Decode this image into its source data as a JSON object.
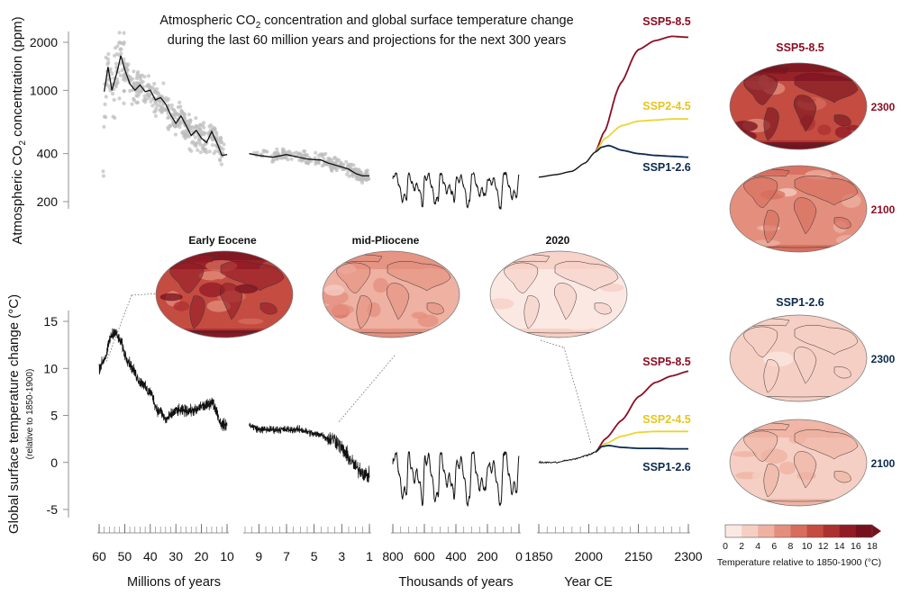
{
  "chart_data": {
    "type": "line",
    "title_line1": "Atmospheric CO",
    "title_line1_sub": "2",
    "title_line1_rest": " concentration and global surface temperature change",
    "title_line2": "during the last 60 million years and projections for the next 300 years",
    "colors": {
      "ssp585": "#8b0e24",
      "ssp245": "#ecd530",
      "ssp126": "#0c2a4e",
      "scatter": "#bcbcbc",
      "line": "#111111"
    },
    "co2_panel": {
      "ylabel_main": "Atmospheric CO",
      "ylabel_sub": "2",
      "ylabel_rest": " concentration (ppm)",
      "yscale": "log",
      "yticks": [
        "2000",
        "1000",
        "400",
        "200"
      ],
      "ylim": [
        170,
        2500
      ],
      "segments": [
        {
          "name": "millions-of-years",
          "xlim": [
            60,
            10
          ],
          "smooth": [
            [
              58,
              980
            ],
            [
              56.5,
              1400
            ],
            [
              55,
              1000
            ],
            [
              53,
              1300
            ],
            [
              51.5,
              1650
            ],
            [
              50,
              1350
            ],
            [
              48,
              1100
            ],
            [
              46,
              1000
            ],
            [
              44,
              1080
            ],
            [
              42,
              980
            ],
            [
              40,
              1000
            ],
            [
              38,
              870
            ],
            [
              36,
              900
            ],
            [
              34,
              820
            ],
            [
              32,
              700
            ],
            [
              30,
              620
            ],
            [
              28,
              690
            ],
            [
              26,
              600
            ],
            [
              24,
              520
            ],
            [
              22,
              560
            ],
            [
              20,
              500
            ],
            [
              18,
              470
            ],
            [
              16,
              550
            ],
            [
              14,
              470
            ],
            [
              12,
              390
            ],
            [
              10,
              395
            ]
          ]
        },
        {
          "name": "pliocene-myr",
          "xlim": [
            10,
            1
          ],
          "smooth": [
            [
              9.7,
              400
            ],
            [
              9,
              390
            ],
            [
              8,
              380
            ],
            [
              7,
              395
            ],
            [
              6.4,
              385
            ],
            [
              5.5,
              370
            ],
            [
              4.5,
              365
            ],
            [
              4,
              350
            ],
            [
              3,
              330
            ],
            [
              2.5,
              320
            ],
            [
              2,
              300
            ],
            [
              1.5,
              290
            ],
            [
              1,
              290
            ]
          ]
        },
        {
          "name": "thousands-of-years",
          "xlim": [
            800,
            0
          ],
          "glacial_min": 185,
          "interglacial_max": 300
        },
        {
          "name": "year-ce",
          "xlim": [
            1850,
            2300
          ],
          "historical": [
            [
              1850,
              285
            ],
            [
              1900,
              295
            ],
            [
              1950,
              310
            ],
            [
              1990,
              350
            ],
            [
              2020,
              410
            ]
          ],
          "series": [
            {
              "name": "SSP5-8.5",
              "values": [
                [
                  2020,
                  410
                ],
                [
                  2050,
                  560
                ],
                [
                  2100,
                  1130
                ],
                [
                  2150,
                  1800
                ],
                [
                  2200,
                  2050
                ],
                [
                  2250,
                  2180
                ],
                [
                  2300,
                  2150
                ]
              ]
            },
            {
              "name": "SSP2-4.5",
              "values": [
                [
                  2020,
                  410
                ],
                [
                  2050,
                  500
                ],
                [
                  2100,
                  600
                ],
                [
                  2150,
                  640
                ],
                [
                  2200,
                  650
                ],
                [
                  2250,
                  660
                ],
                [
                  2300,
                  660
                ]
              ]
            },
            {
              "name": "SSP1-2.6",
              "values": [
                [
                  2020,
                  410
                ],
                [
                  2040,
                  440
                ],
                [
                  2060,
                  450
                ],
                [
                  2100,
                  420
                ],
                [
                  2150,
                  400
                ],
                [
                  2200,
                  390
                ],
                [
                  2250,
                  385
                ],
                [
                  2300,
                  380
                ]
              ]
            }
          ]
        }
      ]
    },
    "temperature_panel": {
      "ylabel": "Global surface temperature change (°C)",
      "ylabel_sub": "(relative to 1850-1900)",
      "yticks": [
        "15",
        "10",
        "5",
        "0",
        "-5"
      ],
      "ylim": [
        -5,
        15
      ],
      "segments": [
        {
          "name": "millions-of-years",
          "xlim": [
            60,
            10
          ],
          "smooth": [
            [
              60,
              10
            ],
            [
              58,
              11
            ],
            [
              57,
              11.5
            ],
            [
              56,
              13
            ],
            [
              55,
              13.5
            ],
            [
              54,
              14
            ],
            [
              53,
              13.5
            ],
            [
              52,
              13
            ],
            [
              51,
              12.5
            ],
            [
              50,
              11.5
            ],
            [
              48,
              10.5
            ],
            [
              46,
              9.5
            ],
            [
              45,
              9
            ],
            [
              44,
              8.5
            ],
            [
              43,
              8.5
            ],
            [
              42,
              8
            ],
            [
              41,
              7.5
            ],
            [
              40,
              7.5
            ],
            [
              39,
              7
            ],
            [
              38,
              6
            ],
            [
              37,
              5.5
            ],
            [
              36,
              5.5
            ],
            [
              34,
              4.5
            ],
            [
              32,
              5
            ],
            [
              30,
              5.5
            ],
            [
              28,
              5.5
            ],
            [
              26,
              5.5
            ],
            [
              24,
              5.5
            ],
            [
              22,
              5.5
            ],
            [
              20,
              6
            ],
            [
              18,
              6
            ],
            [
              16,
              6.5
            ],
            [
              15,
              6
            ],
            [
              14,
              5.5
            ],
            [
              13,
              4.5
            ],
            [
              12,
              4
            ],
            [
              11,
              4
            ],
            [
              10,
              4
            ]
          ]
        },
        {
          "name": "pliocene-myr",
          "xlim": [
            10,
            1
          ],
          "smooth": [
            [
              9.7,
              4
            ],
            [
              9,
              3.5
            ],
            [
              8,
              3.5
            ],
            [
              7,
              3.5
            ],
            [
              6,
              3.5
            ],
            [
              5,
              3
            ],
            [
              4.5,
              3
            ],
            [
              4,
              2.5
            ],
            [
              3.5,
              2.5
            ],
            [
              3,
              1.5
            ],
            [
              2.5,
              0.5
            ],
            [
              2,
              -0.5
            ],
            [
              1.5,
              -1
            ],
            [
              1,
              -1.5
            ]
          ]
        },
        {
          "name": "thousands-of-years",
          "xlim": [
            800,
            0
          ],
          "glacial_min": -4.5,
          "interglacial_max": 1
        },
        {
          "name": "year-ce",
          "xlim": [
            1850,
            2300
          ],
          "historical": [
            [
              1850,
              0
            ],
            [
              1900,
              0
            ],
            [
              1950,
              0.3
            ],
            [
              2000,
              0.8
            ],
            [
              2020,
              1.1
            ]
          ],
          "series": [
            {
              "name": "SSP5-8.5",
              "values": [
                [
                  2020,
                  1.1
                ],
                [
                  2050,
                  2.5
                ],
                [
                  2100,
                  4.5
                ],
                [
                  2150,
                  7
                ],
                [
                  2200,
                  8.5
                ],
                [
                  2250,
                  9.2
                ],
                [
                  2300,
                  9.7
                ]
              ]
            },
            {
              "name": "SSP2-4.5",
              "values": [
                [
                  2020,
                  1.1
                ],
                [
                  2050,
                  2
                ],
                [
                  2100,
                  2.8
                ],
                [
                  2150,
                  3.2
                ],
                [
                  2200,
                  3.3
                ],
                [
                  2250,
                  3.3
                ],
                [
                  2300,
                  3.3
                ]
              ]
            },
            {
              "name": "SSP1-2.6",
              "values": [
                [
                  2020,
                  1.1
                ],
                [
                  2040,
                  1.7
                ],
                [
                  2060,
                  1.8
                ],
                [
                  2100,
                  1.6
                ],
                [
                  2150,
                  1.5
                ],
                [
                  2200,
                  1.5
                ],
                [
                  2250,
                  1.45
                ],
                [
                  2300,
                  1.45
                ]
              ]
            }
          ]
        }
      ]
    },
    "x_axes": [
      {
        "label": "Millions of years",
        "ticks": [
          "60",
          "50",
          "40",
          "30",
          "20",
          "10"
        ]
      },
      {
        "label": "",
        "ticks": [
          "9",
          "7",
          "5",
          "3",
          "1"
        ]
      },
      {
        "label": "Thousands of years",
        "ticks": [
          "800",
          "600",
          "400",
          "200",
          "0"
        ]
      },
      {
        "label": "Year CE",
        "ticks": [
          "1850",
          "2000",
          "2150",
          "2300"
        ]
      }
    ],
    "maps": {
      "past": [
        {
          "label": "Early Eocene",
          "intensity": 0.85
        },
        {
          "label": "mid-Pliocene",
          "intensity": 0.35
        },
        {
          "label": "2020",
          "intensity": 0.08
        }
      ],
      "future": [
        {
          "scenario": "SSP5-8.5",
          "year": "2300",
          "intensity": 0.9
        },
        {
          "scenario": "",
          "year": "2100",
          "intensity": 0.45
        },
        {
          "scenario": "SSP1-2.6",
          "year": "2300",
          "intensity": 0.15
        },
        {
          "scenario": "",
          "year": "2100",
          "intensity": 0.2
        }
      ]
    },
    "ssp_labels": {
      "ssp585": "SSP5-8.5",
      "ssp245": "SSP2-4.5",
      "ssp126": "SSP1-2.6"
    },
    "colorbar": {
      "ticks": [
        "0",
        "2",
        "4",
        "6",
        "8",
        "10",
        "12",
        "14",
        "16",
        "18"
      ],
      "colors": [
        "#fbe8e3",
        "#f6cfc4",
        "#eeb1a2",
        "#e48f7e",
        "#d76d5d",
        "#c44c41",
        "#ad3030",
        "#921a25",
        "#76101d"
      ],
      "label": "Temperature relative to 1850-1900 (°C)"
    }
  }
}
